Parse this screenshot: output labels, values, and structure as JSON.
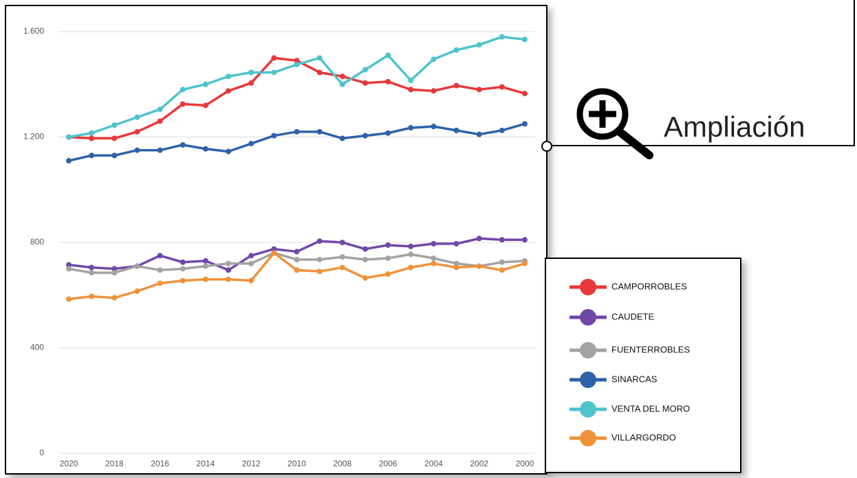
{
  "chart_data": {
    "type": "line",
    "annotation": "Ampliación",
    "categories": [
      2020,
      null,
      2018,
      null,
      2016,
      null,
      2014,
      null,
      2012,
      null,
      2010,
      null,
      2008,
      null,
      2006,
      null,
      2004,
      null,
      2002,
      null,
      2000
    ],
    "series": [
      {
        "name": "CAMPORROBLES",
        "color": "#e8383a",
        "values": [
          1200,
          1195,
          1195,
          1220,
          1260,
          1325,
          1320,
          1375,
          1405,
          1500,
          1490,
          1445,
          1430,
          1405,
          1410,
          1380,
          1375,
          1395,
          1380,
          1390,
          1365
        ]
      },
      {
        "name": "CAUDETE",
        "color": "#7048a8",
        "values": [
          715,
          705,
          700,
          710,
          750,
          725,
          730,
          695,
          750,
          775,
          765,
          805,
          800,
          775,
          790,
          785,
          795,
          795,
          815,
          810,
          810
        ]
      },
      {
        "name": "FUENTERROBLES",
        "color": "#a3a3a3",
        "values": [
          700,
          685,
          685,
          710,
          695,
          700,
          710,
          720,
          720,
          760,
          735,
          735,
          745,
          735,
          740,
          755,
          740,
          720,
          710,
          725,
          730
        ]
      },
      {
        "name": "SINARCAS",
        "color": "#2e62a8",
        "values": [
          1110,
          1130,
          1130,
          1150,
          1150,
          1170,
          1155,
          1145,
          1175,
          1205,
          1220,
          1220,
          1195,
          1205,
          1215,
          1235,
          1240,
          1225,
          1210,
          1225,
          1250
        ]
      },
      {
        "name": "VENTA DEL MORO",
        "color": "#4fc3cc",
        "values": [
          1200,
          1215,
          1245,
          1275,
          1305,
          1380,
          1400,
          1430,
          1445,
          1445,
          1475,
          1500,
          1400,
          1455,
          1510,
          1415,
          1495,
          1530,
          1550,
          1580,
          1570
        ]
      },
      {
        "name": "VILLARGORDO",
        "color": "#f0923a",
        "values": [
          585,
          595,
          590,
          615,
          645,
          655,
          660,
          660,
          655,
          760,
          695,
          690,
          705,
          665,
          680,
          705,
          720,
          705,
          710,
          695,
          720
        ]
      }
    ],
    "ylim": [
      0,
      1600
    ],
    "yticks": [
      0,
      400,
      800,
      {
        "value": 1200,
        "label": "1.200"
      },
      {
        "value": 1600,
        "label": "1.600"
      }
    ],
    "grid": true
  }
}
